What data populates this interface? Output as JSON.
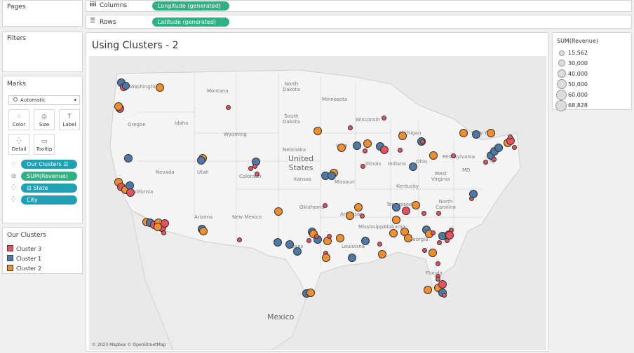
{
  "pages": {
    "title": "Pages"
  },
  "filters": {
    "title": "Filters"
  },
  "columns": {
    "label": "Columns",
    "pill": "Longitude (generated)"
  },
  "rows": {
    "label": "Rows",
    "pill": "Latitude (generated)"
  },
  "marks": {
    "title": "Marks",
    "type": "Automatic",
    "buttons": {
      "color": "Color",
      "size": "Size",
      "label": "Label",
      "detail": "Detail",
      "tooltip": "Tooltip"
    },
    "fields": {
      "clusters": "Our Clusters",
      "revenue": "SUM(Revenue)",
      "state": "State",
      "city": "City"
    }
  },
  "cluster_legend": {
    "title": "Our Clusters",
    "items": [
      {
        "label": "Cluster 3",
        "color": "#e8525e"
      },
      {
        "label": "Cluster 1",
        "color": "#4e79a7"
      },
      {
        "label": "Cluster 2",
        "color": "#f28e2b"
      }
    ]
  },
  "size_legend": {
    "title": "SUM(Revenue)",
    "items": [
      "15,562",
      "30,000",
      "40,000",
      "50,000",
      "60,000",
      "68,828"
    ]
  },
  "viz": {
    "title": "Using Clusters - 2",
    "attribution": "© 2023 Mapbox © OpenStreetMap",
    "map_labels": {
      "washington": "Washington",
      "montana": "Montana",
      "north_dakota": "North\nDakota",
      "minnesota": "Minnesota",
      "oregon": "Oregon",
      "idaho": "Idaho",
      "south_dakota": "South\nDakota",
      "wisconsin": "Wisconsin",
      "michigan": "Michigan",
      "new_york": "New York",
      "wyoming": "Wyoming",
      "nebraska": "Nebraska",
      "iowa": "Iowa",
      "pennsylvania": "Pennsylvania",
      "nevada": "Nevada",
      "utah": "Utah",
      "colorado": "Colorado",
      "united_states": "United\nStates",
      "illinois": "Illinois",
      "indiana": "Indiana",
      "ohio": "Ohio",
      "california": "California",
      "kansas": "Kansas",
      "missouri": "Missouri",
      "west_virginia": "West\nVirginia",
      "virginia": "Virginia",
      "kentucky": "Kentucky",
      "md": "MD",
      "nj": "NJ",
      "arizona": "Arizona",
      "new_mexico": "New Mexico",
      "oklahoma": "Oklahoma",
      "arkansas": "Arkansas",
      "tennessee": "Tennessee",
      "north_carolina": "North\nCarolina",
      "mississippi": "Mississippi",
      "alabama": "Alabama",
      "georgia": "Georgia",
      "texas": "Texas",
      "louisiana": "Louisiana",
      "florida": "Florida",
      "mexico": "Mexico"
    }
  }
}
